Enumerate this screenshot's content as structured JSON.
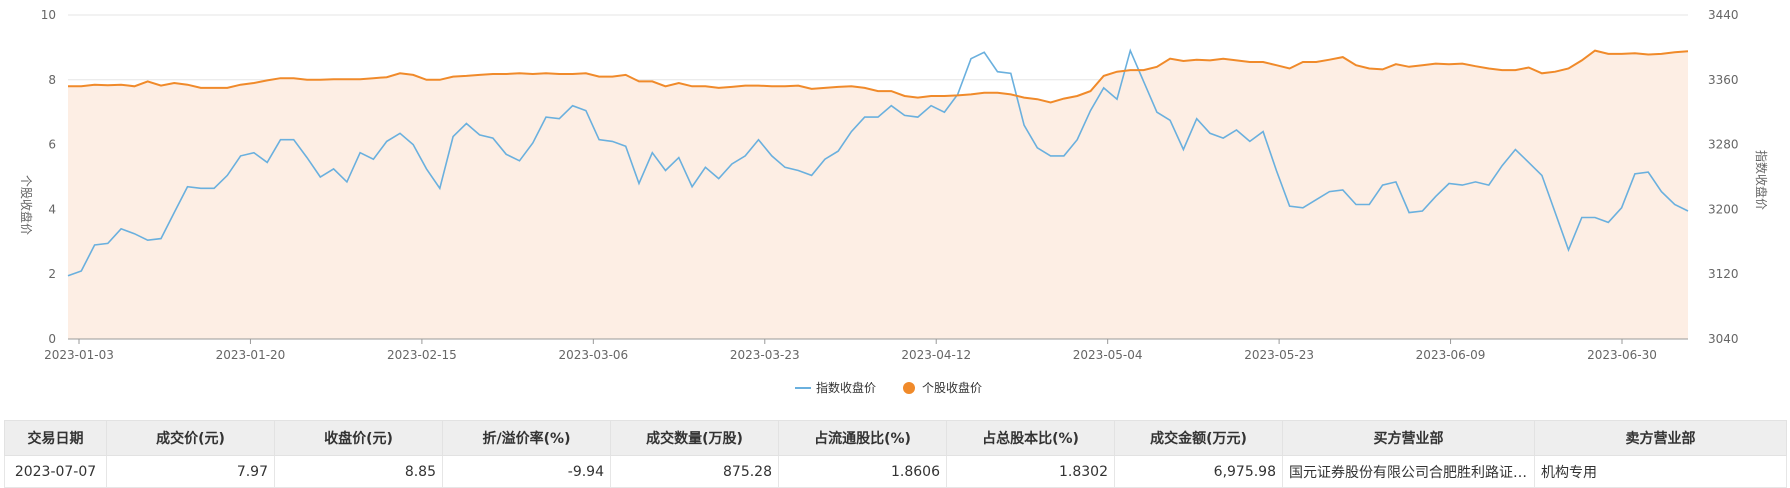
{
  "chart_data": {
    "type": "line",
    "x_ticks": [
      "2023-01-03",
      "2023-01-20",
      "2023-02-15",
      "2023-03-06",
      "2023-03-23",
      "2023-04-12",
      "2023-05-04",
      "2023-05-23",
      "2023-06-09",
      "2023-06-30"
    ],
    "y_left": {
      "label": "个股收盘价",
      "min": 0,
      "max": 10,
      "ticks": [
        0,
        2,
        4,
        6,
        8,
        10
      ]
    },
    "y_right": {
      "label": "指数收盘价",
      "min": 3040,
      "max": 3440,
      "ticks": [
        3040,
        3120,
        3200,
        3280,
        3360,
        3440
      ]
    },
    "grid": true,
    "legend_position": "bottom-center",
    "colors": {
      "index": "#6ab0de",
      "stock": "#f08a2a",
      "area": "#fdeee4"
    },
    "series": [
      {
        "name": "指数收盘价",
        "axis": "left",
        "values": [
          1.95,
          2.1,
          2.9,
          2.95,
          3.4,
          3.25,
          3.05,
          3.1,
          3.9,
          4.7,
          4.65,
          4.65,
          5.05,
          5.65,
          5.75,
          5.45,
          6.15,
          6.15,
          5.6,
          5.0,
          5.25,
          4.85,
          5.75,
          5.55,
          6.1,
          6.35,
          6.0,
          5.25,
          4.65,
          6.25,
          6.65,
          6.3,
          6.2,
          5.7,
          5.5,
          6.05,
          6.85,
          6.8,
          7.2,
          7.05,
          6.15,
          6.1,
          5.95,
          4.8,
          5.75,
          5.2,
          5.6,
          4.7,
          5.3,
          4.95,
          5.4,
          5.65,
          6.15,
          5.65,
          5.3,
          5.2,
          5.05,
          5.55,
          5.8,
          6.4,
          6.85,
          6.85,
          7.2,
          6.9,
          6.85,
          7.2,
          7.0,
          7.55,
          8.65,
          8.85,
          8.25,
          8.2,
          6.6,
          5.9,
          5.65,
          5.65,
          6.15,
          7.05,
          7.75,
          7.4,
          8.9,
          7.95,
          7.0,
          6.75,
          5.85,
          6.8,
          6.35,
          6.2,
          6.45,
          6.1,
          6.4,
          5.2,
          4.1,
          4.05,
          4.3,
          4.55,
          4.6,
          4.15,
          4.15,
          4.75,
          4.85,
          3.9,
          3.95,
          4.4,
          4.8,
          4.75,
          4.85,
          4.75,
          5.35,
          5.85,
          5.45,
          5.05,
          3.9,
          2.75,
          3.75,
          3.75,
          3.6,
          4.05,
          5.1,
          5.15,
          4.55,
          4.15,
          3.95
        ]
      },
      {
        "name": "个股收盘价",
        "axis": "left",
        "values": [
          7.8,
          7.8,
          7.85,
          7.83,
          7.85,
          7.8,
          7.95,
          7.82,
          7.9,
          7.85,
          7.75,
          7.75,
          7.75,
          7.85,
          7.9,
          7.98,
          8.05,
          8.05,
          8.0,
          8.0,
          8.02,
          8.02,
          8.02,
          8.05,
          8.08,
          8.2,
          8.15,
          8.0,
          8.0,
          8.1,
          8.12,
          8.15,
          8.18,
          8.18,
          8.2,
          8.18,
          8.2,
          8.18,
          8.18,
          8.2,
          8.1,
          8.1,
          8.15,
          7.95,
          7.95,
          7.8,
          7.9,
          7.8,
          7.8,
          7.75,
          7.78,
          7.82,
          7.82,
          7.8,
          7.8,
          7.82,
          7.72,
          7.75,
          7.78,
          7.8,
          7.75,
          7.65,
          7.65,
          7.5,
          7.45,
          7.5,
          7.5,
          7.52,
          7.55,
          7.6,
          7.6,
          7.55,
          7.45,
          7.4,
          7.3,
          7.42,
          7.5,
          7.65,
          8.12,
          8.25,
          8.3,
          8.3,
          8.4,
          8.65,
          8.58,
          8.62,
          8.6,
          8.65,
          8.6,
          8.55,
          8.55,
          8.45,
          8.35,
          8.55,
          8.55,
          8.62,
          8.7,
          8.45,
          8.35,
          8.32,
          8.48,
          8.4,
          8.45,
          8.5,
          8.48,
          8.5,
          8.42,
          8.35,
          8.3,
          8.3,
          8.38,
          8.2,
          8.25,
          8.35,
          8.6,
          8.9,
          8.8,
          8.8,
          8.82,
          8.78,
          8.8,
          8.85,
          8.88
        ]
      }
    ]
  },
  "table": {
    "headers": [
      "交易日期",
      "成交价(元)",
      "收盘价(元)",
      "折/溢价率(%)",
      "成交数量(万股)",
      "占流通股比(%)",
      "占总股本比(%)",
      "成交金额(万元)",
      "买方营业部",
      "卖方营业部"
    ],
    "rows": [
      [
        "2023-07-07",
        "7.97",
        "8.85",
        "-9.94",
        "875.28",
        "1.8606",
        "1.8302",
        "6,975.98",
        "国元证券股份有限公司合肥胜利路证券营业部",
        "机构专用"
      ]
    ]
  }
}
